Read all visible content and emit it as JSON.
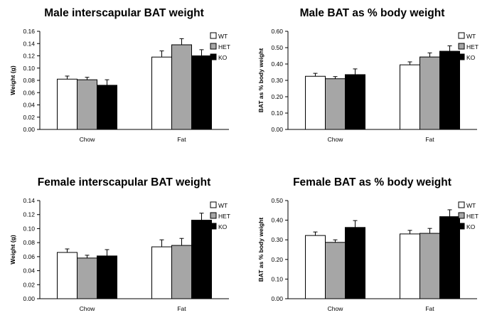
{
  "chart_data": [
    {
      "type": "bar",
      "title": "Male interscapular BAT weight",
      "xlabel": "",
      "ylabel": "Weight (g)",
      "categories": [
        "Chow",
        "Fat"
      ],
      "ylim": [
        0,
        0.16
      ],
      "yticks": [
        "0.00",
        "0.02",
        "0.04",
        "0.06",
        "0.08",
        "0.10",
        "0.12",
        "0.14",
        "0.16"
      ],
      "series": [
        {
          "name": "WT",
          "color": "#ffffff",
          "values": [
            0.082,
            0.118
          ],
          "errors": [
            0.005,
            0.01
          ]
        },
        {
          "name": "HET",
          "color": "#a6a6a6",
          "values": [
            0.081,
            0.138
          ],
          "errors": [
            0.004,
            0.01
          ]
        },
        {
          "name": "KO",
          "color": "#000000",
          "values": [
            0.072,
            0.12
          ],
          "errors": [
            0.009,
            0.01
          ]
        }
      ],
      "legend": "top-right"
    },
    {
      "type": "bar",
      "title": "Male BAT as % body weight",
      "xlabel": "",
      "ylabel": "BAT as % body weight",
      "categories": [
        "Chow",
        "Fat"
      ],
      "ylim": [
        0,
        0.6
      ],
      "yticks": [
        "0.00",
        "0.10",
        "0.20",
        "0.30",
        "0.40",
        "0.50",
        "0.60"
      ],
      "series": [
        {
          "name": "WT",
          "color": "#ffffff",
          "values": [
            0.325,
            0.395
          ],
          "errors": [
            0.018,
            0.018
          ]
        },
        {
          "name": "HET",
          "color": "#a6a6a6",
          "values": [
            0.31,
            0.443
          ],
          "errors": [
            0.013,
            0.025
          ]
        },
        {
          "name": "KO",
          "color": "#000000",
          "values": [
            0.335,
            0.478
          ],
          "errors": [
            0.035,
            0.033
          ]
        }
      ],
      "legend": "top-right"
    },
    {
      "type": "bar",
      "title": "Female interscapular BAT weight",
      "xlabel": "",
      "ylabel": "Weight (g)",
      "categories": [
        "Chow",
        "Fat"
      ],
      "ylim": [
        0,
        0.14
      ],
      "yticks": [
        "0.00",
        "0.02",
        "0.04",
        "0.06",
        "0.08",
        "0.10",
        "0.12",
        "0.14"
      ],
      "series": [
        {
          "name": "WT",
          "color": "#ffffff",
          "values": [
            0.066,
            0.074
          ],
          "errors": [
            0.005,
            0.01
          ]
        },
        {
          "name": "HET",
          "color": "#a6a6a6",
          "values": [
            0.058,
            0.076
          ],
          "errors": [
            0.004,
            0.01
          ]
        },
        {
          "name": "KO",
          "color": "#000000",
          "values": [
            0.061,
            0.112
          ],
          "errors": [
            0.009,
            0.01
          ]
        }
      ],
      "legend": "top-right"
    },
    {
      "type": "bar",
      "title": "Female BAT as % body weight",
      "xlabel": "",
      "ylabel": "BAT as % body weight",
      "categories": [
        "Chow",
        "Fat"
      ],
      "ylim": [
        0,
        0.5
      ],
      "yticks": [
        "0.00",
        "0.10",
        "0.20",
        "0.30",
        "0.40",
        "0.50"
      ],
      "series": [
        {
          "name": "WT",
          "color": "#ffffff",
          "values": [
            0.322,
            0.33
          ],
          "errors": [
            0.018,
            0.018
          ]
        },
        {
          "name": "HET",
          "color": "#a6a6a6",
          "values": [
            0.287,
            0.333
          ],
          "errors": [
            0.013,
            0.025
          ]
        },
        {
          "name": "KO",
          "color": "#000000",
          "values": [
            0.363,
            0.418
          ],
          "errors": [
            0.035,
            0.035
          ]
        }
      ],
      "legend": "top-right"
    }
  ]
}
